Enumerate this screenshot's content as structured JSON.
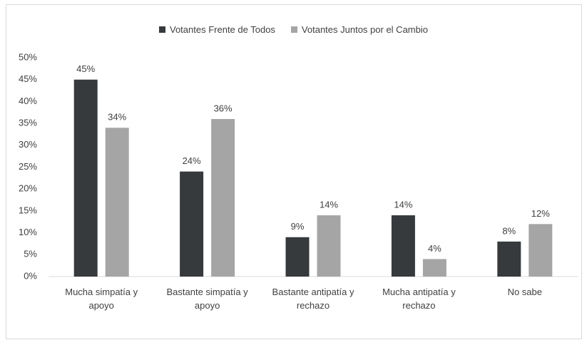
{
  "chart_data": {
    "type": "bar",
    "categories": [
      "Mucha simpatía y apoyo",
      "Bastante simpatía y apoyo",
      "Bastante antipatía y rechazo",
      "Mucha antipatía y rechazo",
      "No sabe"
    ],
    "series": [
      {
        "name": "Votantes Frente de Todos",
        "color": "#363a3d",
        "values": [
          45,
          24,
          9,
          14,
          8
        ],
        "value_labels": [
          "45%",
          "24%",
          "9%",
          "14%",
          "8%"
        ]
      },
      {
        "name": "Votantes Juntos por el Cambio",
        "color": "#a5a5a5",
        "values": [
          34,
          36,
          14,
          4,
          12
        ],
        "value_labels": [
          "34%",
          "36%",
          "14%",
          "4%",
          "12%"
        ]
      }
    ],
    "ylim": [
      0,
      50
    ],
    "yticks": [
      {
        "value": 0,
        "label": "0%"
      },
      {
        "value": 5,
        "label": "5%"
      },
      {
        "value": 10,
        "label": "10%"
      },
      {
        "value": 15,
        "label": "15%"
      },
      {
        "value": 20,
        "label": "20%"
      },
      {
        "value": 25,
        "label": "25%"
      },
      {
        "value": 30,
        "label": "30%"
      },
      {
        "value": 35,
        "label": "35%"
      },
      {
        "value": 40,
        "label": "40%"
      },
      {
        "value": 45,
        "label": "45%"
      },
      {
        "value": 50,
        "label": "50%"
      }
    ],
    "grid": false,
    "legend": "top"
  }
}
